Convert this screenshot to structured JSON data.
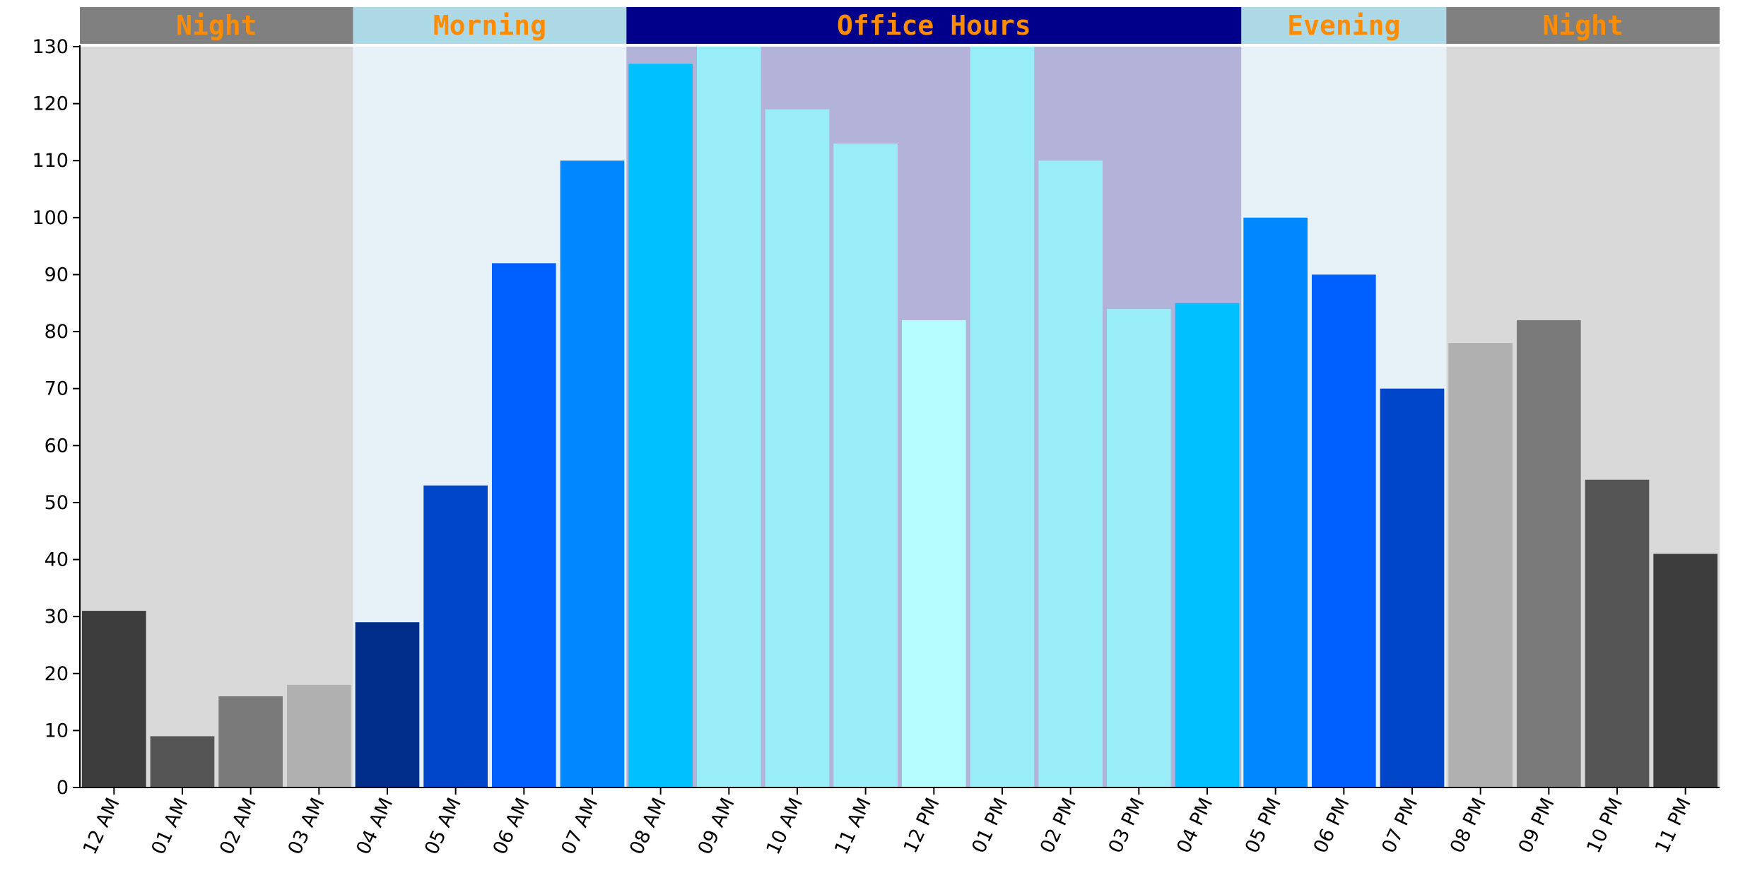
{
  "chart_data": {
    "type": "bar",
    "title": "",
    "xlabel": "",
    "ylabel": "",
    "ylim": [
      0,
      130
    ],
    "yticks": [
      0,
      10,
      20,
      30,
      40,
      50,
      60,
      70,
      80,
      90,
      100,
      110,
      120,
      130
    ],
    "grid": false,
    "categories": [
      "12 AM",
      "01 AM",
      "02 AM",
      "03 AM",
      "04 AM",
      "05 AM",
      "06 AM",
      "07 AM",
      "08 AM",
      "09 AM",
      "10 AM",
      "11 AM",
      "12 PM",
      "01 PM",
      "02 PM",
      "03 PM",
      "04 PM",
      "05 PM",
      "06 PM",
      "07 PM",
      "08 PM",
      "09 PM",
      "10 PM",
      "11 PM"
    ],
    "values": [
      31,
      9,
      16,
      18,
      29,
      53,
      92,
      110,
      127,
      130,
      119,
      113,
      82,
      130,
      110,
      84,
      85,
      100,
      90,
      70,
      78,
      82,
      54,
      41
    ],
    "bar_colors": [
      "#3d3d3d",
      "#555555",
      "#7a7a7a",
      "#b0b0b0",
      "#002d8a",
      "#0046c8",
      "#005fff",
      "#0088ff",
      "#00c0ff",
      "#98edf9",
      "#98edf9",
      "#98edf9",
      "#b4fcfd",
      "#98edf9",
      "#98edf9",
      "#98edf9",
      "#00c0ff",
      "#0088ff",
      "#005fff",
      "#0046c8",
      "#b0b0b0",
      "#7a7a7a",
      "#555555",
      "#3d3d3d"
    ],
    "periods": [
      {
        "label": "Night",
        "start": 0,
        "end": 4,
        "header_color": "#808080",
        "background_color": "#d9d9d9"
      },
      {
        "label": "Morning",
        "start": 4,
        "end": 8,
        "header_color": "#add8e6",
        "background_color": "#e6f2f8"
      },
      {
        "label": "Office Hours",
        "start": 8,
        "end": 17,
        "header_color": "#00008b",
        "background_color": "#b3b3da"
      },
      {
        "label": "Evening",
        "start": 17,
        "end": 20,
        "header_color": "#add8e6",
        "background_color": "#e6f2f8"
      },
      {
        "label": "Night",
        "start": 20,
        "end": 24,
        "header_color": "#808080",
        "background_color": "#d9d9d9"
      }
    ],
    "period_label_color": "#ff8c00"
  }
}
